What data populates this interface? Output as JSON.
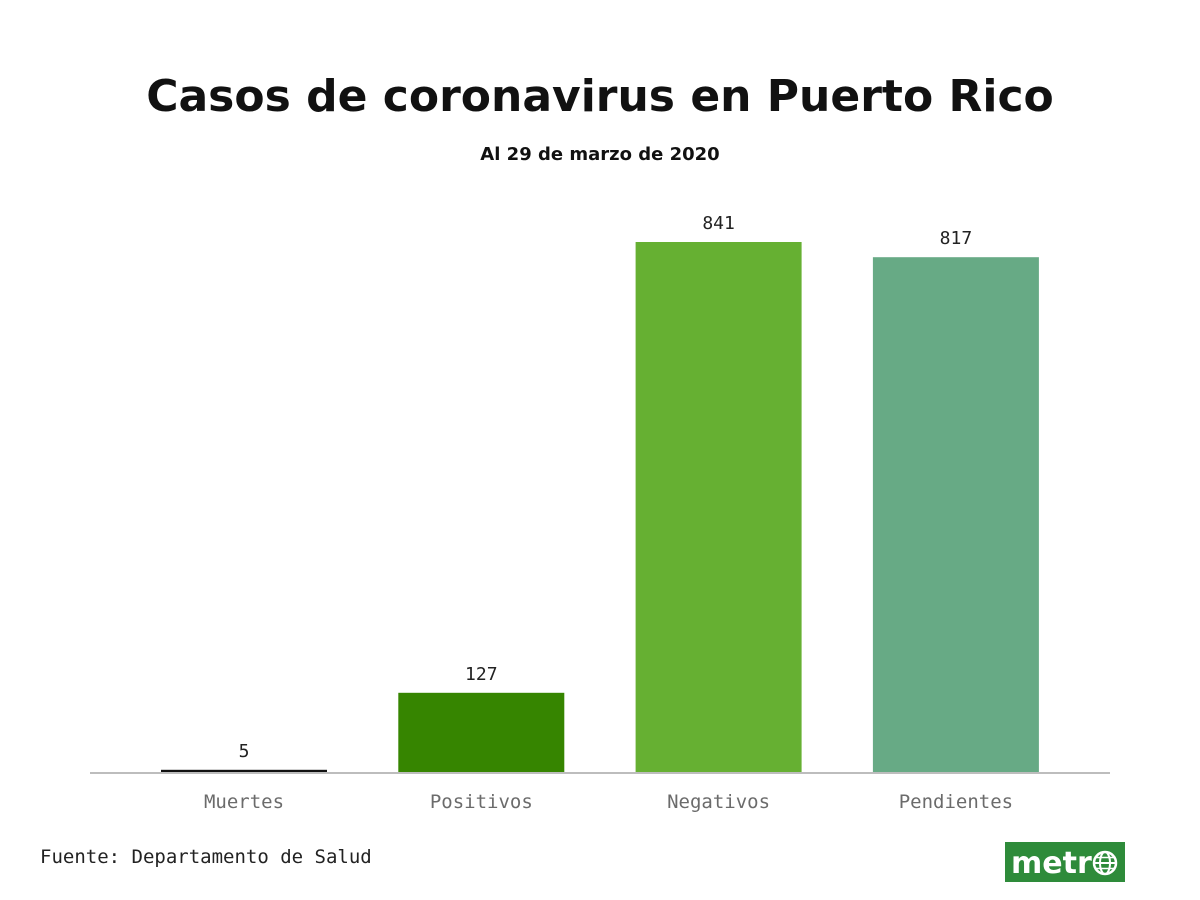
{
  "header": {
    "title": "Casos de coronavirus en Puerto Rico",
    "subtitle": "Al 29 de marzo de 2020"
  },
  "chart_data": {
    "type": "bar",
    "title": "Casos de coronavirus en Puerto Rico",
    "subtitle": "Al 29 de marzo de 2020",
    "categories": [
      "Muertes",
      "Positivos",
      "Negativos",
      "Pendientes"
    ],
    "values": [
      5,
      127,
      841,
      817
    ],
    "colors": [
      "#111111",
      "#368500",
      "#66b032",
      "#67aa85"
    ],
    "xlabel": "",
    "ylabel": "",
    "ylim": [
      0,
      841
    ],
    "grid": false,
    "data_labels": true,
    "legend": "none"
  },
  "footer": {
    "source": "Fuente: Departamento de Salud",
    "logo_text": "metr",
    "logo_icon": "globe-icon",
    "logo_color": "#2e8b3a"
  }
}
